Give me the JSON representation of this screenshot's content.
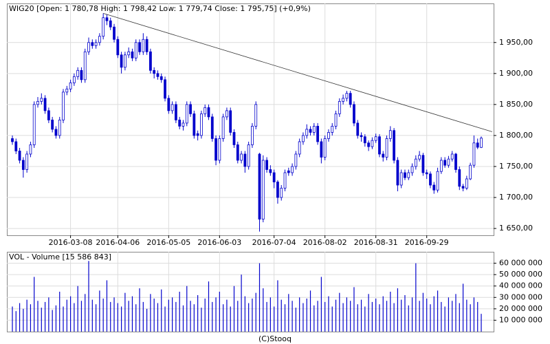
{
  "chart_data": [
    {
      "type": "candlestick",
      "title": "WIG20 [Open: 1 780,78  High: 1 798,42  Low: 1 779,74  Close: 1 795,75] (+0,9%)",
      "categories": [
        null,
        null,
        null,
        null,
        null,
        null,
        null,
        null,
        null,
        null,
        null,
        null,
        null,
        null,
        null,
        null,
        "2016-03-08",
        null,
        null,
        null,
        null,
        null,
        null,
        null,
        null,
        null,
        null,
        null,
        null,
        "2016-04-06",
        null,
        null,
        null,
        null,
        null,
        null,
        null,
        null,
        null,
        null,
        null,
        null,
        null,
        "2016-05-05",
        null,
        null,
        null,
        null,
        null,
        null,
        null,
        null,
        null,
        null,
        null,
        null,
        null,
        "2016-06-03",
        null,
        null,
        null,
        null,
        null,
        null,
        null,
        null,
        null,
        null,
        null,
        null,
        null,
        null,
        "2016-07-04",
        null,
        null,
        null,
        null,
        null,
        null,
        null,
        null,
        null,
        null,
        null,
        null,
        null,
        "2016-08-02",
        null,
        null,
        null,
        null,
        null,
        null,
        null,
        null,
        null,
        null,
        null,
        null,
        null,
        "2016-08-31",
        null,
        null,
        null,
        null,
        null,
        null,
        null,
        null,
        null,
        null,
        null,
        null,
        null,
        "2016-09-29",
        null,
        null,
        null,
        null,
        null,
        null,
        null,
        null,
        null,
        null,
        null,
        null,
        null,
        null,
        null
      ],
      "open": [
        1795,
        1790,
        1775,
        1760,
        1745,
        1770,
        1785,
        1850,
        1855,
        1860,
        1840,
        1825,
        1810,
        1800,
        1825,
        1870,
        1875,
        1885,
        1895,
        1905,
        1890,
        1935,
        1950,
        1945,
        1950,
        1960,
        1990,
        1985,
        1975,
        1955,
        1930,
        1910,
        1930,
        1935,
        1925,
        1950,
        1935,
        1955,
        1935,
        1905,
        1900,
        1895,
        1890,
        1860,
        1840,
        1850,
        1825,
        1815,
        1820,
        1850,
        1835,
        1803,
        1800,
        1835,
        1845,
        1830,
        1795,
        1760,
        1795,
        1830,
        1840,
        1805,
        1785,
        1760,
        1770,
        1750,
        1785,
        1815,
        1770,
        1665,
        1760,
        1745,
        1740,
        1725,
        1700,
        1715,
        1743,
        1740,
        1750,
        1770,
        1790,
        1800,
        1810,
        1805,
        1815,
        1790,
        1765,
        1795,
        1805,
        1815,
        1835,
        1855,
        1860,
        1868,
        1850,
        1820,
        1800,
        1798,
        1788,
        1782,
        1792,
        1798,
        1770,
        1765,
        1795,
        1808,
        1760,
        1720,
        1740,
        1732,
        1740,
        1750,
        1762,
        1768,
        1740,
        1738,
        1720,
        1712,
        1742,
        1760,
        1752,
        1762,
        1770,
        1745,
        1718,
        1715,
        1730,
        1752,
        1788,
        1780.78
      ],
      "high": [
        1800,
        1795,
        1780,
        1765,
        1775,
        1790,
        1855,
        1862,
        1868,
        1865,
        1845,
        1830,
        1815,
        1830,
        1875,
        1880,
        1890,
        1900,
        1910,
        1910,
        1940,
        1958,
        1955,
        1955,
        1965,
        1997,
        1995,
        1990,
        1980,
        1960,
        1935,
        1935,
        1942,
        1940,
        1955,
        1955,
        1965,
        1960,
        1940,
        1910,
        1905,
        1900,
        1895,
        1865,
        1855,
        1855,
        1830,
        1825,
        1855,
        1855,
        1840,
        1808,
        1840,
        1850,
        1850,
        1835,
        1800,
        1800,
        1835,
        1845,
        1845,
        1810,
        1790,
        1775,
        1775,
        1790,
        1820,
        1855,
        1772,
        1768,
        1765,
        1752,
        1745,
        1728,
        1720,
        1745,
        1748,
        1755,
        1775,
        1795,
        1805,
        1818,
        1815,
        1820,
        1820,
        1795,
        1800,
        1810,
        1820,
        1840,
        1860,
        1866,
        1872,
        1872,
        1855,
        1825,
        1805,
        1802,
        1792,
        1797,
        1803,
        1802,
        1775,
        1800,
        1815,
        1812,
        1765,
        1745,
        1745,
        1745,
        1755,
        1768,
        1775,
        1772,
        1745,
        1742,
        1725,
        1748,
        1765,
        1765,
        1767,
        1775,
        1772,
        1750,
        1722,
        1735,
        1756,
        1800,
        1795,
        1798.42
      ],
      "low": [
        1785,
        1770,
        1755,
        1732,
        1740,
        1765,
        1780,
        1845,
        1850,
        1835,
        1820,
        1805,
        1795,
        1795,
        1820,
        1865,
        1870,
        1880,
        1890,
        1885,
        1885,
        1930,
        1940,
        1940,
        1945,
        1955,
        1978,
        1970,
        1950,
        1925,
        1900,
        1905,
        1925,
        1920,
        1920,
        1930,
        1930,
        1930,
        1900,
        1892,
        1890,
        1885,
        1855,
        1835,
        1835,
        1820,
        1810,
        1808,
        1815,
        1830,
        1795,
        1792,
        1795,
        1830,
        1825,
        1790,
        1752,
        1755,
        1790,
        1825,
        1800,
        1780,
        1755,
        1755,
        1740,
        1745,
        1780,
        1810,
        1645,
        1660,
        1740,
        1735,
        1715,
        1690,
        1695,
        1710,
        1735,
        1735,
        1745,
        1765,
        1785,
        1795,
        1800,
        1800,
        1785,
        1755,
        1760,
        1790,
        1800,
        1810,
        1830,
        1850,
        1855,
        1845,
        1815,
        1795,
        1790,
        1782,
        1775,
        1778,
        1788,
        1765,
        1758,
        1760,
        1790,
        1755,
        1710,
        1715,
        1728,
        1728,
        1735,
        1745,
        1758,
        1735,
        1730,
        1715,
        1706,
        1708,
        1738,
        1748,
        1748,
        1758,
        1740,
        1712,
        1710,
        1712,
        1728,
        1748,
        1778,
        1779.74
      ],
      "close": [
        1790,
        1775,
        1760,
        1745,
        1770,
        1785,
        1850,
        1855,
        1860,
        1840,
        1825,
        1810,
        1800,
        1825,
        1870,
        1875,
        1885,
        1895,
        1905,
        1890,
        1935,
        1950,
        1945,
        1950,
        1960,
        1990,
        1985,
        1975,
        1955,
        1930,
        1910,
        1930,
        1935,
        1925,
        1950,
        1935,
        1955,
        1935,
        1905,
        1900,
        1895,
        1890,
        1860,
        1840,
        1850,
        1825,
        1815,
        1820,
        1850,
        1835,
        1800,
        1800,
        1835,
        1845,
        1830,
        1795,
        1760,
        1795,
        1830,
        1840,
        1805,
        1785,
        1760,
        1770,
        1750,
        1785,
        1815,
        1850,
        1665,
        1760,
        1745,
        1740,
        1725,
        1700,
        1715,
        1740,
        1740,
        1750,
        1770,
        1790,
        1800,
        1810,
        1805,
        1815,
        1790,
        1765,
        1795,
        1805,
        1815,
        1835,
        1855,
        1860,
        1868,
        1850,
        1820,
        1800,
        1798,
        1788,
        1782,
        1792,
        1798,
        1770,
        1765,
        1795,
        1808,
        1760,
        1720,
        1740,
        1732,
        1740,
        1750,
        1762,
        1768,
        1740,
        1738,
        1720,
        1712,
        1742,
        1760,
        1752,
        1762,
        1770,
        1745,
        1718,
        1715,
        1730,
        1752,
        1788,
        1781,
        1795.75
      ],
      "color": "#0000cc",
      "ylim": [
        1639,
        2013
      ],
      "yticks": [
        {
          "value": 1650,
          "label": "1 650,00"
        },
        {
          "value": 1700,
          "label": "1 700,00"
        },
        {
          "value": 1750,
          "label": "1 750,00"
        },
        {
          "value": 1800,
          "label": "1 800,00"
        },
        {
          "value": 1850,
          "label": "1 850,00"
        },
        {
          "value": 1900,
          "label": "1 900,00"
        },
        {
          "value": 1950,
          "label": "1 950,00"
        }
      ],
      "trendline": {
        "x": [
          25,
          132
        ],
        "y": [
          1997,
          1806
        ]
      },
      "grid": true
    },
    {
      "type": "bar",
      "title": "VOL - Volume [15 586 843]",
      "values": [
        22000000,
        18000000,
        25000000,
        20000000,
        28000000,
        24000000,
        48000000,
        27000000,
        21000000,
        26000000,
        30000000,
        19000000,
        23000000,
        35000000,
        22000000,
        28000000,
        31000000,
        25000000,
        40000000,
        27000000,
        33000000,
        62000000,
        28000000,
        24000000,
        36000000,
        29000000,
        45000000,
        26000000,
        30000000,
        25000000,
        22000000,
        34000000,
        27000000,
        31000000,
        24000000,
        38000000,
        26000000,
        20000000,
        33000000,
        29000000,
        25000000,
        37000000,
        22000000,
        28000000,
        30000000,
        26000000,
        35000000,
        23000000,
        40000000,
        27000000,
        24000000,
        32000000,
        21000000,
        29000000,
        44000000,
        26000000,
        30000000,
        35000000,
        24000000,
        28000000,
        22000000,
        40000000,
        27000000,
        50000000,
        31000000,
        25000000,
        29000000,
        34000000,
        60000000,
        38000000,
        26000000,
        30000000,
        22000000,
        45000000,
        28000000,
        24000000,
        33000000,
        27000000,
        21000000,
        30000000,
        25000000,
        29000000,
        36000000,
        23000000,
        27000000,
        48000000,
        26000000,
        31000000,
        22000000,
        28000000,
        34000000,
        25000000,
        30000000,
        27000000,
        39000000,
        24000000,
        28000000,
        22000000,
        33000000,
        26000000,
        29000000,
        24000000,
        31000000,
        27000000,
        35000000,
        25000000,
        38000000,
        28000000,
        32000000,
        23000000,
        30000000,
        60000000,
        27000000,
        34000000,
        29000000,
        24000000,
        31000000,
        36000000,
        26000000,
        22000000,
        30000000,
        27000000,
        33000000,
        25000000,
        42000000,
        28000000,
        24000000,
        30000000,
        26000000,
        15586843
      ],
      "color": "#0000cc",
      "ylim": [
        0,
        70000000
      ],
      "yticks": [
        {
          "value": 10000000,
          "label": "10 000 000"
        },
        {
          "value": 20000000,
          "label": "20 000 000"
        },
        {
          "value": 30000000,
          "label": "30 000 000"
        },
        {
          "value": 40000000,
          "label": "40 000 000"
        },
        {
          "value": 50000000,
          "label": "50 000 000"
        },
        {
          "value": 60000000,
          "label": "60 000 000"
        }
      ],
      "grid": true
    }
  ],
  "footer": "(C)Stooq"
}
